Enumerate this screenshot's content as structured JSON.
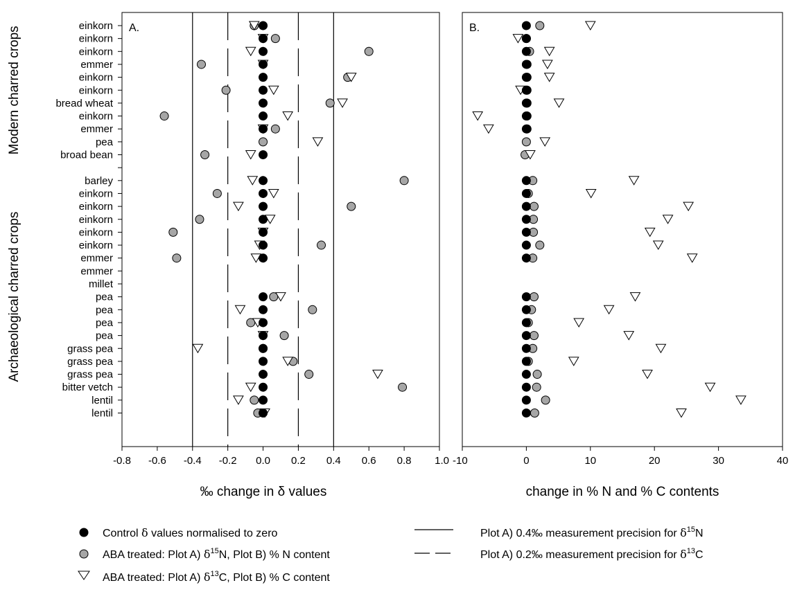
{
  "chart_data": [
    {
      "type": "scatter",
      "panel_label": "A.",
      "xlabel": "‰ change in δ values",
      "xlim": [
        -0.8,
        1.0
      ],
      "xticks": [
        -0.8,
        -0.6,
        -0.4,
        -0.2,
        0.0,
        0.2,
        0.4,
        0.6,
        0.8,
        1.0
      ],
      "xtick_labels": [
        "-0.8",
        "-0.6",
        "-0.4",
        "-0.2",
        "0.0",
        "0.2",
        "0.4",
        "0.6",
        "0.8",
        "1.0"
      ],
      "reference_lines": [
        {
          "style": "solid",
          "x": [
            -0.4,
            0.4
          ]
        },
        {
          "style": "dashed",
          "x": [
            -0.2,
            0.2
          ]
        }
      ],
      "series": [
        {
          "marker": "black-circle",
          "values": [
            0,
            0,
            0,
            0,
            0,
            0,
            0,
            0,
            0,
            null,
            0,
            null,
            0,
            0,
            0,
            0,
            0,
            0,
            0,
            null,
            null,
            0,
            0,
            0,
            0,
            0,
            0,
            0,
            0,
            0,
            0
          ]
        },
        {
          "marker": "grey-circle",
          "values": [
            -0.05,
            0.07,
            0.6,
            -0.35,
            0.48,
            -0.21,
            0.38,
            -0.56,
            0.07,
            0.0,
            -0.33,
            null,
            0.8,
            -0.26,
            0.5,
            -0.36,
            -0.51,
            0.33,
            -0.49,
            null,
            null,
            0.06,
            0.28,
            -0.07,
            0.12,
            0.0,
            0.17,
            0.26,
            0.79,
            -0.05,
            -0.03
          ]
        },
        {
          "marker": "open-triangle",
          "values": [
            -0.05,
            0.0,
            -0.07,
            0.0,
            0.5,
            0.06,
            0.45,
            0.14,
            0.0,
            0.31,
            -0.07,
            null,
            -0.06,
            0.06,
            -0.14,
            0.04,
            0.0,
            -0.02,
            -0.04,
            null,
            null,
            0.1,
            -0.13,
            -0.03,
            0.0,
            -0.37,
            0.14,
            0.65,
            -0.07,
            -0.14,
            0.01
          ]
        }
      ]
    },
    {
      "type": "scatter",
      "panel_label": "B.",
      "xlabel": "change in % N and % C contents",
      "xlim": [
        -10,
        40
      ],
      "xticks": [
        -10,
        0,
        10,
        20,
        30,
        40
      ],
      "xtick_labels": [
        "-10",
        "0",
        "10",
        "20",
        "30",
        "40"
      ],
      "series": [
        {
          "marker": "black-circle",
          "values": [
            0,
            0,
            0,
            0,
            0,
            0,
            0,
            0,
            0,
            null,
            null,
            null,
            0,
            0,
            0,
            0,
            0,
            0,
            0,
            null,
            null,
            0,
            0,
            0,
            0,
            0,
            0,
            0,
            0,
            0,
            0
          ]
        },
        {
          "marker": "grey-circle",
          "values": [
            2.1,
            0.0,
            0.5,
            0.1,
            0.1,
            0.1,
            0.1,
            0.1,
            0.1,
            0.0,
            -0.2,
            null,
            1.0,
            0.3,
            1.2,
            1.1,
            1.1,
            2.1,
            1.0,
            null,
            null,
            1.2,
            0.8,
            0.3,
            1.2,
            1.0,
            0.3,
            1.7,
            1.6,
            3.0,
            1.3
          ]
        },
        {
          "marker": "open-triangle",
          "values": [
            10.0,
            -1.3,
            3.6,
            3.3,
            3.6,
            -0.9,
            5.1,
            -7.6,
            -5.9,
            2.9,
            0.6,
            null,
            16.8,
            10.1,
            25.3,
            22.1,
            19.3,
            20.6,
            25.9,
            null,
            null,
            17.0,
            12.9,
            8.2,
            16.0,
            21.0,
            7.4,
            18.9,
            28.7,
            33.5,
            24.2
          ]
        }
      ]
    }
  ],
  "categories": [
    "einkorn",
    "einkorn",
    "einkorn",
    "emmer",
    "einkorn",
    "einkorn",
    "bread wheat",
    "einkorn",
    "emmer",
    "pea",
    "broad bean",
    "",
    "barley",
    "einkorn",
    "einkorn",
    "einkorn",
    "einkorn",
    "einkorn",
    "emmer",
    "emmer",
    "millet",
    "pea",
    "pea",
    "pea",
    "pea",
    "grass pea",
    "grass pea",
    "grass pea",
    "bitter vetch",
    "lentil",
    "lentil"
  ],
  "groups": [
    {
      "name": "Modern charred crops",
      "from": 0,
      "to": 10
    },
    {
      "name": "Archaeological charred crops",
      "from": 12,
      "to": 30
    }
  ],
  "legend": {
    "control": {
      "prefix": "Control ",
      "sym": "δ",
      "suffix": " values normalised to zero"
    },
    "n_treated": {
      "prefix": "ABA treated: Plot A) ",
      "sym": "δ",
      "sup": "15",
      "mid": "N, Plot B) % N content"
    },
    "c_treated": {
      "prefix": "ABA treated: Plot A) ",
      "sym": "δ",
      "sup": "13",
      "mid": "C, Plot B) % C content"
    },
    "solid_line": {
      "prefix": "Plot A) 0.4‰ measurement precision for ",
      "sym": "δ",
      "sup": "15",
      "mid": "N"
    },
    "dashed_line": {
      "prefix": "Plot A) 0.2‰ measurement precision for ",
      "sym": "δ",
      "sup": "13",
      "mid": "C"
    }
  },
  "colors": {
    "control": "#000000",
    "n_treated": "#a6a6a6",
    "c_treated": "#ffffff",
    "stroke": "#000000"
  }
}
